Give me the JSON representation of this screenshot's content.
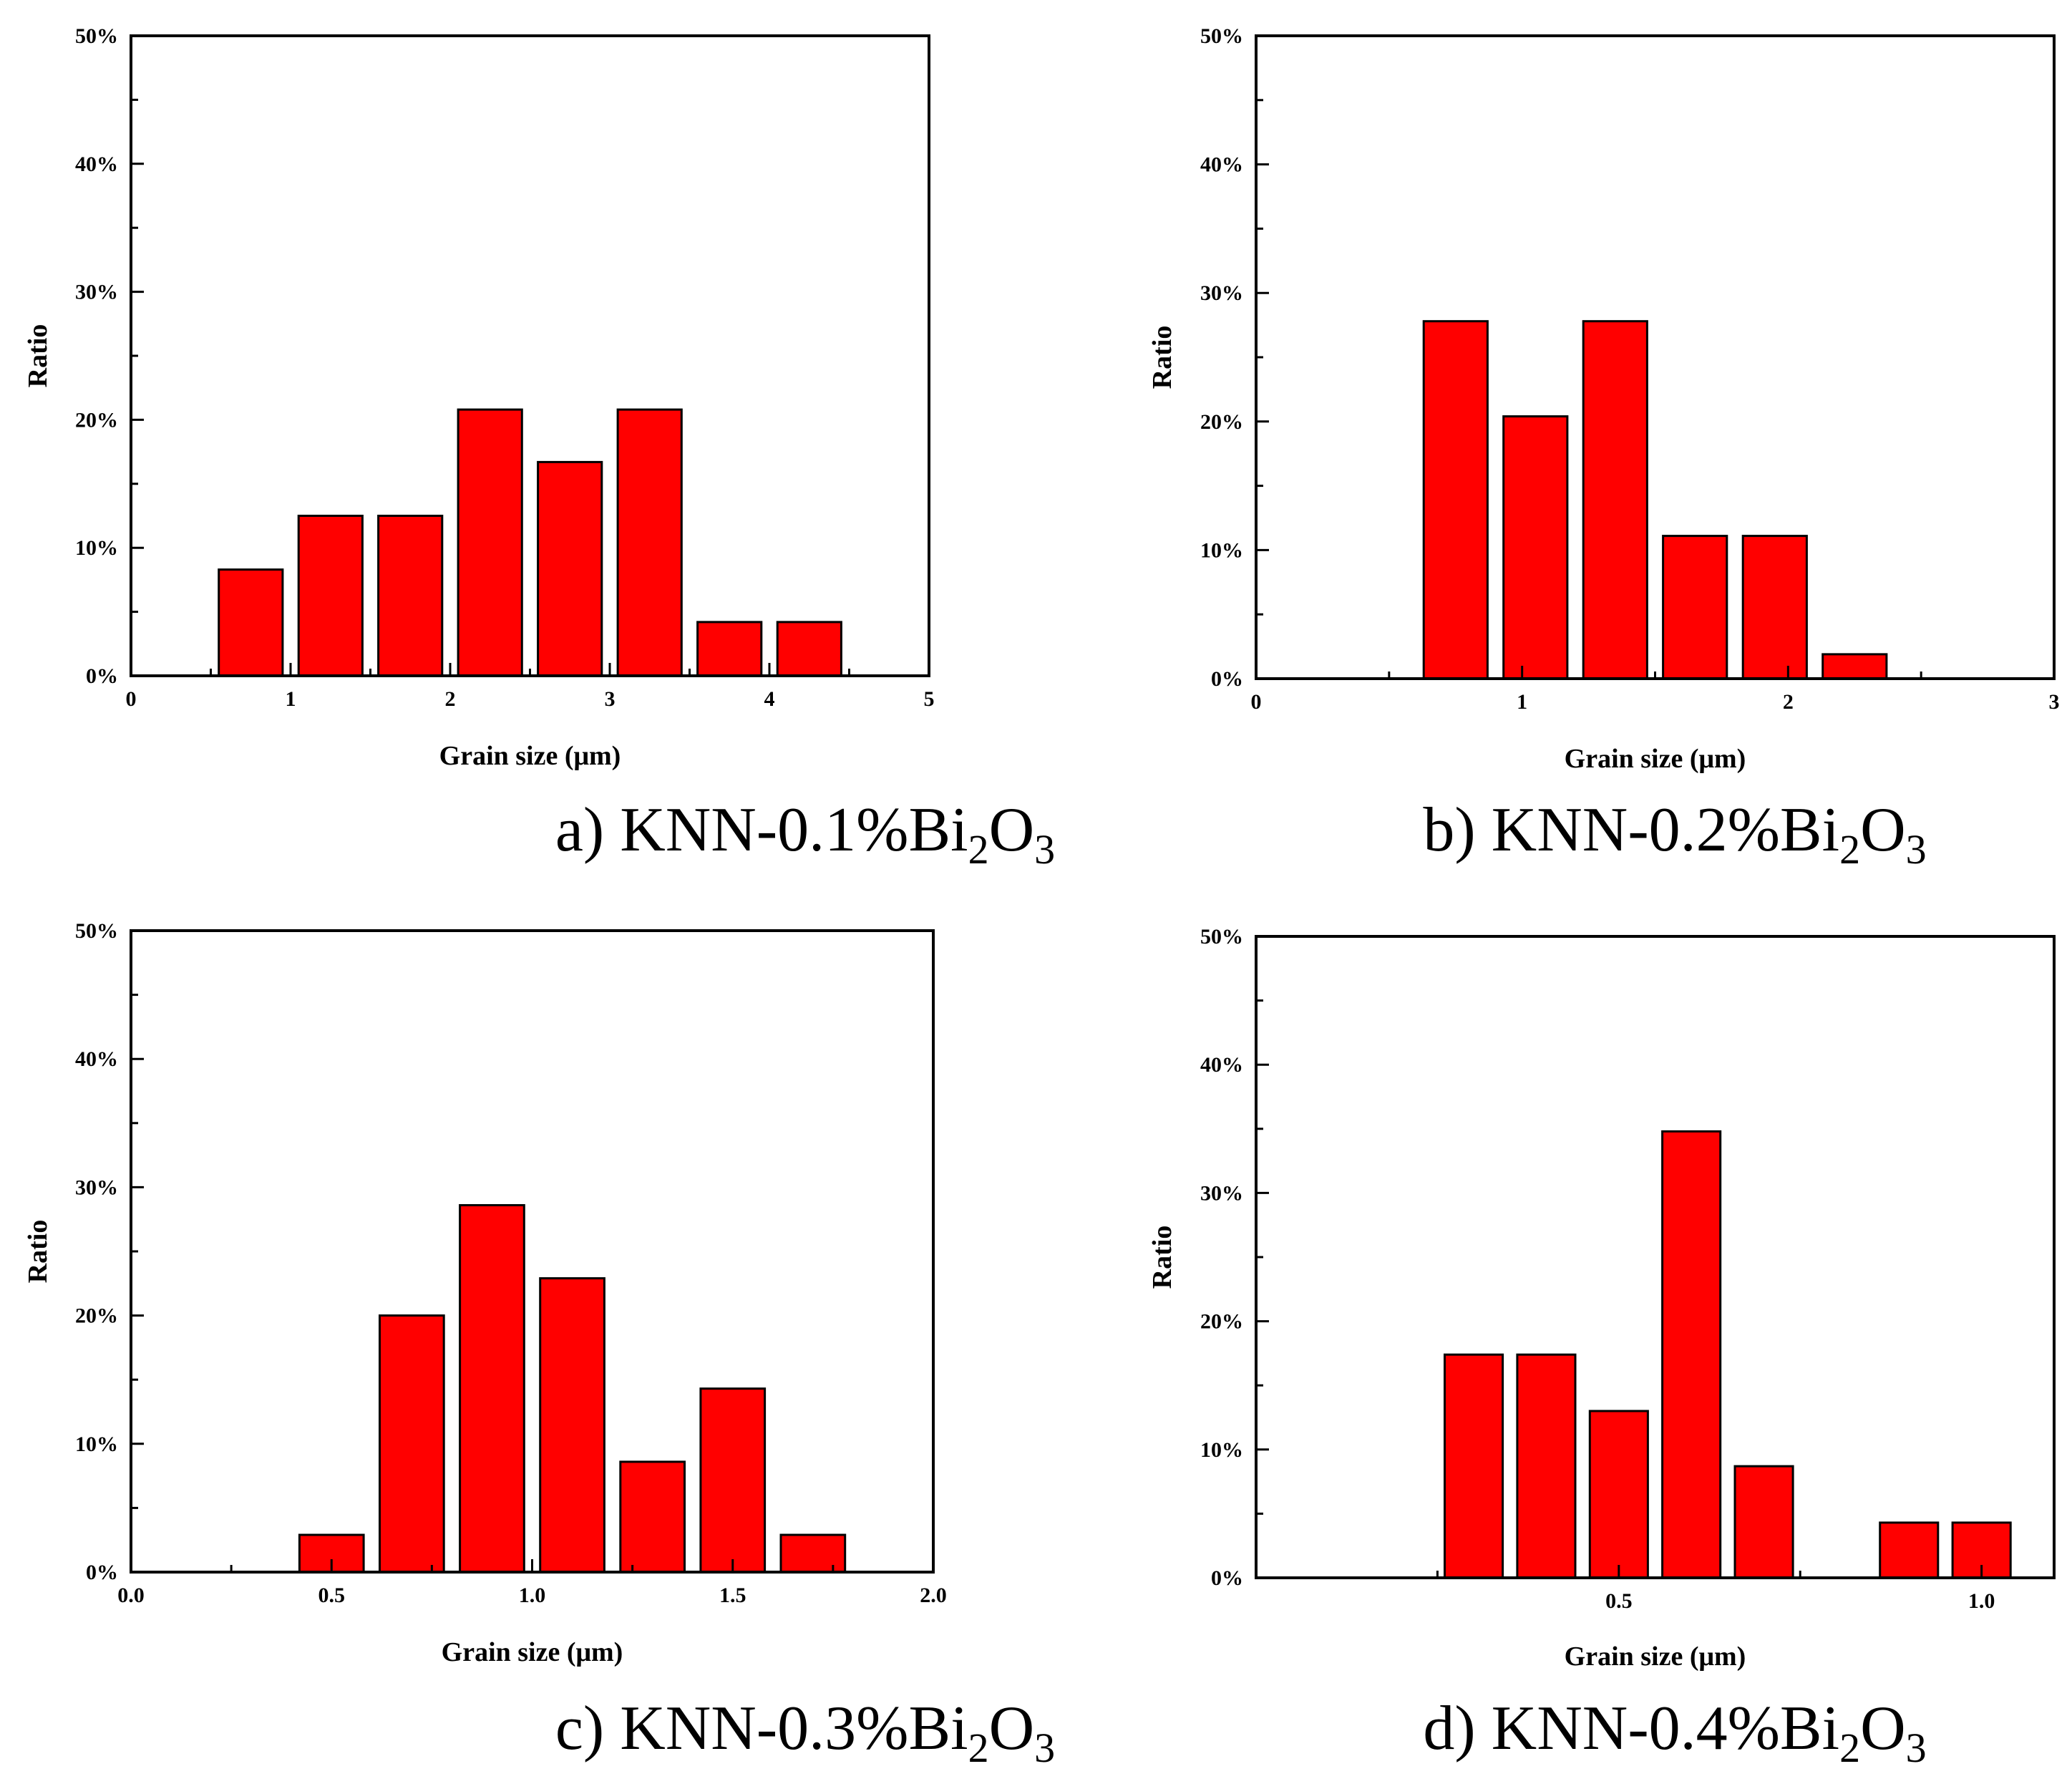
{
  "colors": {
    "bar_fill": "#ff0000",
    "bar_stroke": "#000000",
    "axis": "#000000",
    "background": "#ffffff"
  },
  "chart_data": [
    {
      "type": "bar",
      "panel": "a",
      "caption": {
        "prefix": "a) KNN-0.1%Bi",
        "sub1": "2",
        "mid": "O",
        "sub2": "3"
      },
      "xlabel": "Grain size (μm)",
      "ylabel": "Ratio",
      "xlim": [
        0,
        5
      ],
      "ylim": [
        0,
        0.5
      ],
      "xticks": [
        0,
        1,
        2,
        3,
        4,
        5
      ],
      "xtick_labels": [
        "0",
        "1",
        "2",
        "3",
        "4",
        "5"
      ],
      "yticks": [
        0,
        0.1,
        0.2,
        0.3,
        0.4,
        0.5
      ],
      "ytick_labels": [
        "0%",
        "10%",
        "20%",
        "30%",
        "40%",
        "50%"
      ],
      "bar_width": 0.4,
      "x": [
        0.75,
        1.25,
        1.75,
        2.25,
        2.75,
        3.25,
        3.75,
        4.25
      ],
      "values": [
        0.083,
        0.125,
        0.125,
        0.208,
        0.167,
        0.208,
        0.042,
        0.042
      ]
    },
    {
      "type": "bar",
      "panel": "b",
      "caption": {
        "prefix": "b) KNN-0.2%Bi",
        "sub1": "2",
        "mid": "O",
        "sub2": "3"
      },
      "xlabel": "Grain size (μm)",
      "ylabel": "Ratio",
      "xlim": [
        0,
        3
      ],
      "ylim": [
        0,
        0.5
      ],
      "xticks": [
        0,
        1,
        2,
        3
      ],
      "xtick_labels": [
        "0",
        "1",
        "2",
        "3"
      ],
      "yticks": [
        0,
        0.1,
        0.2,
        0.3,
        0.4,
        0.5
      ],
      "ytick_labels": [
        "0%",
        "10%",
        "20%",
        "30%",
        "40%",
        "50%"
      ],
      "bar_width": 0.24,
      "x": [
        0.75,
        1.05,
        1.35,
        1.65,
        1.95,
        2.25
      ],
      "values": [
        0.278,
        0.204,
        0.278,
        0.111,
        0.111,
        0.019
      ]
    },
    {
      "type": "bar",
      "panel": "c",
      "caption": {
        "prefix": "c) KNN-0.3%Bi",
        "sub1": "2",
        "mid": "O",
        "sub2": "3"
      },
      "xlabel": "Grain size (μm)",
      "ylabel": "Ratio",
      "xlim": [
        0,
        2
      ],
      "ylim": [
        0,
        0.5
      ],
      "xticks": [
        0,
        0.5,
        1.0,
        1.5,
        2.0
      ],
      "xtick_labels": [
        "0.0",
        "0.5",
        "1.0",
        "1.5",
        "2.0"
      ],
      "yticks": [
        0,
        0.1,
        0.2,
        0.3,
        0.4,
        0.5
      ],
      "ytick_labels": [
        "0%",
        "10%",
        "20%",
        "30%",
        "40%",
        "50%"
      ],
      "bar_width": 0.16,
      "x": [
        0.5,
        0.7,
        0.9,
        1.1,
        1.3,
        1.5,
        1.7
      ],
      "values": [
        0.029,
        0.2,
        0.286,
        0.229,
        0.086,
        0.143,
        0.029
      ]
    },
    {
      "type": "bar",
      "panel": "d",
      "caption": {
        "prefix": "d) KNN-0.4%Bi",
        "sub1": "2",
        "mid": "O",
        "sub2": "3"
      },
      "xlabel": "Grain size (μm)",
      "ylabel": "Ratio",
      "xlim": [
        0,
        1.1
      ],
      "ylim": [
        0,
        0.5
      ],
      "xticks": [
        0.5,
        1.0
      ],
      "xtick_labels": [
        "0.5",
        "1.0"
      ],
      "yticks": [
        0,
        0.1,
        0.2,
        0.3,
        0.4,
        0.5
      ],
      "ytick_labels": [
        "0%",
        "10%",
        "20%",
        "30%",
        "40%",
        "50%"
      ],
      "bar_width": 0.08,
      "x": [
        0.3,
        0.4,
        0.5,
        0.6,
        0.7,
        0.9,
        1.0
      ],
      "values": [
        0.174,
        0.174,
        0.13,
        0.348,
        0.087,
        0.043,
        0.043
      ]
    }
  ]
}
